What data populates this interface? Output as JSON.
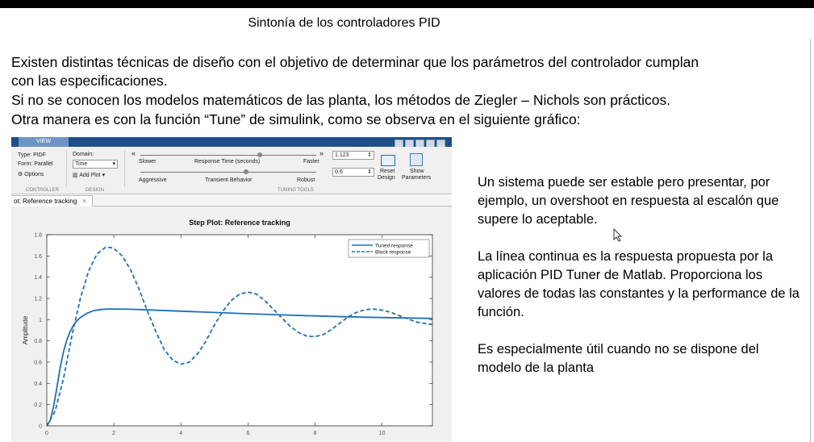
{
  "title": "Sintonía de los controladores PID",
  "paragraphs": [
    "Existen distintas técnicas de diseño con el objetivo de determinar que los parámetros del controlador cumplan",
    "con las especificaciones.",
    "Si no se conocen los modelos matemáticos de las planta, los métodos de Ziegler – Nichols son prácticos.",
    "Otra manera es con la función “Tune” de simulink, como se observa en el siguiente gráfico:"
  ],
  "right_text": [
    "Un sistema puede ser estable pero presentar, por ejemplo, un overshoot  en respuesta al escalón que supere lo aceptable.",
    "La línea continua es la respuesta propuesta por la aplicación PID Tuner de Matlab. Proporciona los valores de todas las constantes y la performance de la función.",
    "Es especialmente útil cuando no se dispone del modelo de la planta"
  ],
  "tuner": {
    "tab": "VIEW",
    "type_label": "Type: PIDF",
    "form_label": "Form: Parallel",
    "options_label": "Options",
    "domain_label": "Domain:",
    "domain_value": "Time",
    "add_plot_label": "Add Plot",
    "slower_label": "Slower",
    "response_time_label": "Response Time (seconds)",
    "faster_label": "Faster",
    "aggressive_label": "Aggressive",
    "transient_label": "Transient Behavior",
    "robust_label": "Robust",
    "response_time_value": "1.123",
    "transient_value": "0.6",
    "reset_label": "Reset",
    "design_label": "Design",
    "show_label": "Show",
    "parameters_label": "Parameters",
    "group_controller": "CONTROLLER",
    "group_design": "DESIGN",
    "group_tuning": "TUNING TOOLS",
    "slider_response_time": 0.68,
    "slider_transient": 0.6,
    "doc_tab": "ot: Reference tracking"
  },
  "chart_data": {
    "type": "line",
    "title": "Step Plot: Reference tracking",
    "xlabel": "",
    "ylabel": "Amplitude",
    "xlim": [
      0,
      11.5
    ],
    "ylim": [
      0,
      1.8
    ],
    "xticks": [
      0,
      2,
      4,
      6,
      8,
      10
    ],
    "yticks": [
      0,
      0.2,
      0.4,
      0.6,
      0.8,
      1,
      1.2,
      1.4,
      1.6,
      1.8
    ],
    "grid": false,
    "legend_position": "top-right",
    "series": [
      {
        "name": "Tuned response",
        "style": "solid",
        "color": "#1f6fb5",
        "x": [
          0,
          0.1,
          0.2,
          0.3,
          0.4,
          0.5,
          0.6,
          0.7,
          0.8,
          0.9,
          1.0,
          1.2,
          1.4,
          1.6,
          1.8,
          2.0,
          2.5,
          3.0,
          4.0,
          5.0,
          6.0,
          7.0,
          8.0,
          9.0,
          10.0,
          11.5
        ],
        "y": [
          0,
          0.05,
          0.18,
          0.36,
          0.55,
          0.7,
          0.81,
          0.89,
          0.95,
          0.99,
          1.02,
          1.06,
          1.085,
          1.095,
          1.1,
          1.1,
          1.098,
          1.092,
          1.08,
          1.068,
          1.056,
          1.045,
          1.035,
          1.027,
          1.02,
          1.012
        ]
      },
      {
        "name": "Block response",
        "style": "dashed",
        "color": "#1f6fb5",
        "x": [
          0,
          0.25,
          0.5,
          0.75,
          1.0,
          1.25,
          1.5,
          1.75,
          1.9,
          2.0,
          2.25,
          2.5,
          2.75,
          3.0,
          3.25,
          3.5,
          3.75,
          4.0,
          4.25,
          4.5,
          4.75,
          5.0,
          5.25,
          5.5,
          5.75,
          6.0,
          6.25,
          6.5,
          6.75,
          7.0,
          7.25,
          7.5,
          7.75,
          8.0,
          8.25,
          8.5,
          8.75,
          9.0,
          9.25,
          9.5,
          9.75,
          10.0,
          10.25,
          10.5,
          10.75,
          11.0,
          11.25,
          11.5
        ],
        "y": [
          0,
          0.14,
          0.45,
          0.85,
          1.2,
          1.46,
          1.62,
          1.68,
          1.68,
          1.67,
          1.6,
          1.47,
          1.29,
          1.08,
          0.89,
          0.72,
          0.62,
          0.58,
          0.6,
          0.68,
          0.8,
          0.95,
          1.08,
          1.18,
          1.24,
          1.26,
          1.24,
          1.18,
          1.1,
          1.02,
          0.94,
          0.88,
          0.845,
          0.84,
          0.86,
          0.91,
          0.97,
          1.03,
          1.07,
          1.095,
          1.1,
          1.09,
          1.07,
          1.04,
          1.01,
          0.98,
          0.965,
          0.955
        ]
      }
    ]
  }
}
